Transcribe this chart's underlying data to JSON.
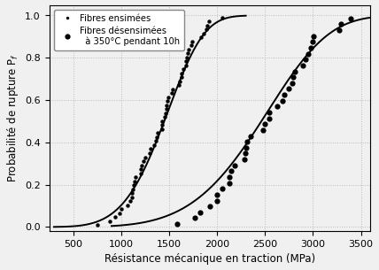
{
  "title": "",
  "xlabel": "Résistance mécanique en traction (MPa)",
  "ylabel": "Probabilité de rupture P$_f$",
  "xlim": [
    250,
    3600
  ],
  "ylim": [
    -0.02,
    1.05
  ],
  "xticks": [
    500,
    1000,
    1500,
    2000,
    2500,
    3000,
    3500
  ],
  "yticks": [
    0.0,
    0.2,
    0.4,
    0.6,
    0.8,
    1.0
  ],
  "series1": {
    "label": "Fibres ensimées",
    "weibull_scale": 1560,
    "weibull_shape": 5.0,
    "n_points": 55,
    "x_min": 700,
    "x_max": 2100,
    "marker": "o",
    "marker_size": 3.2,
    "color": "black"
  },
  "series2": {
    "label_line1": "Fibres désensimées",
    "label_line2": "  à 350°C pendant 10h",
    "weibull_scale": 2650,
    "weibull_shape": 5.0,
    "n_points": 40,
    "x_min": 1500,
    "x_max": 3500,
    "marker": "o",
    "marker_size": 4.5,
    "color": "black"
  },
  "curve_color": "black",
  "curve_lw": 1.4,
  "grid_color": "#bbbbbb",
  "grid_style": "dotted",
  "background_color": "#f0f0f0",
  "ylabel_fontsize": 8.5,
  "xlabel_fontsize": 8.5,
  "tick_fontsize": 8
}
